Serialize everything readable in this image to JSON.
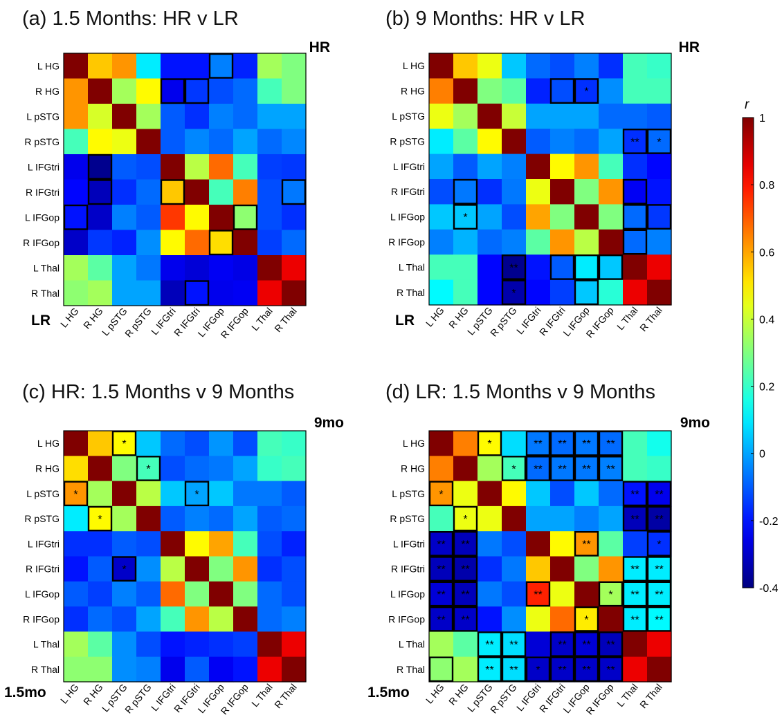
{
  "chart_data": [
    {
      "type": "heatmap",
      "title": "(a) 1.5 Months: HR v LR",
      "corner_top": "HR",
      "corner_bottom": "LR",
      "regions": [
        "L HG",
        "R HG",
        "L pSTG",
        "R pSTG",
        "L IFGtri",
        "R IFGtri",
        "L IFGop",
        "R IFGop",
        "L Thal",
        "R Thal"
      ],
      "matrix": [
        [
          1.0,
          0.55,
          0.62,
          0.1,
          -0.2,
          -0.2,
          -0.05,
          -0.18,
          0.35,
          0.3
        ],
        [
          0.62,
          1.0,
          0.35,
          0.48,
          -0.25,
          -0.15,
          -0.12,
          -0.08,
          0.22,
          0.3
        ],
        [
          0.62,
          0.42,
          1.0,
          0.35,
          -0.1,
          -0.16,
          -0.05,
          -0.08,
          0.0,
          0.0
        ],
        [
          0.22,
          0.48,
          0.45,
          1.0,
          -0.1,
          -0.04,
          -0.08,
          0.0,
          -0.08,
          -0.04
        ],
        [
          -0.25,
          -0.38,
          -0.1,
          -0.12,
          1.0,
          0.38,
          0.68,
          0.22,
          -0.14,
          -0.15
        ],
        [
          -0.22,
          -0.32,
          -0.16,
          -0.08,
          0.55,
          1.0,
          0.22,
          0.65,
          -0.12,
          -0.06
        ],
        [
          -0.2,
          -0.3,
          -0.05,
          -0.1,
          0.75,
          0.48,
          1.0,
          0.32,
          -0.12,
          -0.16
        ],
        [
          -0.3,
          -0.15,
          -0.18,
          -0.03,
          0.48,
          0.68,
          0.52,
          1.0,
          -0.14,
          -0.08
        ],
        [
          0.35,
          0.25,
          0.0,
          -0.06,
          -0.25,
          -0.28,
          -0.24,
          -0.26,
          1.0,
          0.85
        ],
        [
          0.32,
          0.35,
          0.0,
          0.0,
          -0.32,
          -0.2,
          -0.25,
          -0.24,
          0.85,
          1.0
        ]
      ],
      "boxes": [
        [
          0,
          6
        ],
        [
          1,
          4
        ],
        [
          1,
          5
        ],
        [
          4,
          1
        ],
        [
          5,
          1
        ],
        [
          5,
          4
        ],
        [
          5,
          9
        ],
        [
          6,
          0
        ],
        [
          6,
          7
        ],
        [
          7,
          6
        ],
        [
          9,
          5
        ]
      ],
      "stars": []
    },
    {
      "type": "heatmap",
      "title": "(b) 9 Months: HR v LR",
      "corner_top": "HR",
      "corner_bottom": "LR",
      "regions": [
        "L HG",
        "R HG",
        "L pSTG",
        "R pSTG",
        "L IFGtri",
        "R IFGtri",
        "L IFGop",
        "R IFGop",
        "L Thal",
        "R Thal"
      ],
      "matrix": [
        [
          1.0,
          0.55,
          0.45,
          0.05,
          -0.08,
          -0.12,
          -0.05,
          -0.16,
          0.22,
          0.2
        ],
        [
          0.65,
          1.0,
          0.3,
          0.25,
          -0.18,
          -0.12,
          -0.16,
          -0.03,
          0.22,
          0.22
        ],
        [
          0.45,
          0.35,
          1.0,
          0.4,
          0.0,
          0.0,
          0.0,
          -0.08,
          -0.08,
          -0.1
        ],
        [
          0.1,
          0.25,
          0.48,
          1.0,
          -0.1,
          -0.05,
          -0.08,
          0.0,
          -0.16,
          -0.08
        ],
        [
          0.0,
          -0.1,
          0.0,
          -0.05,
          1.0,
          0.48,
          0.62,
          0.22,
          -0.16,
          -0.22
        ],
        [
          -0.12,
          -0.06,
          -0.16,
          -0.06,
          0.45,
          1.0,
          0.3,
          0.62,
          -0.24,
          -0.2
        ],
        [
          0.05,
          0.05,
          0.0,
          -0.12,
          0.6,
          0.3,
          1.0,
          0.3,
          -0.08,
          -0.15
        ],
        [
          -0.05,
          0.02,
          -0.08,
          -0.05,
          0.25,
          0.62,
          0.38,
          1.0,
          -0.08,
          -0.05
        ],
        [
          0.22,
          0.22,
          -0.22,
          -0.38,
          -0.2,
          -0.1,
          0.1,
          0.05,
          1.0,
          0.85
        ],
        [
          0.12,
          0.22,
          -0.22,
          -0.34,
          -0.22,
          -0.14,
          0.05,
          0.18,
          0.85,
          1.0
        ]
      ],
      "boxes": [
        [
          1,
          5
        ],
        [
          1,
          6
        ],
        [
          3,
          8
        ],
        [
          3,
          9
        ],
        [
          5,
          1
        ],
        [
          5,
          8
        ],
        [
          6,
          1
        ],
        [
          6,
          8
        ],
        [
          6,
          9
        ],
        [
          7,
          8
        ],
        [
          8,
          3
        ],
        [
          8,
          5
        ],
        [
          8,
          6
        ],
        [
          8,
          7
        ],
        [
          9,
          3
        ],
        [
          9,
          6
        ]
      ],
      "stars": [
        [
          1,
          6,
          "*"
        ],
        [
          3,
          8,
          "**"
        ],
        [
          3,
          9,
          "*"
        ],
        [
          6,
          1,
          "*"
        ],
        [
          8,
          3,
          "**"
        ],
        [
          9,
          3,
          "*"
        ]
      ]
    },
    {
      "type": "heatmap",
      "title": "(c) HR: 1.5 Months v 9 Months",
      "corner_top": "9mo",
      "corner_bottom": "1.5mo",
      "regions": [
        "L HG",
        "R HG",
        "L pSTG",
        "R pSTG",
        "L IFGtri",
        "R IFGtri",
        "L IFGop",
        "R IFGop",
        "L Thal",
        "R Thal"
      ],
      "matrix": [
        [
          1.0,
          0.55,
          0.48,
          0.05,
          -0.08,
          -0.12,
          -0.02,
          -0.12,
          0.22,
          0.2
        ],
        [
          0.52,
          1.0,
          0.3,
          0.22,
          -0.12,
          -0.08,
          -0.06,
          0.0,
          0.2,
          0.22
        ],
        [
          0.62,
          0.35,
          1.0,
          0.38,
          0.05,
          0.0,
          0.05,
          -0.06,
          -0.06,
          -0.1
        ],
        [
          0.1,
          0.48,
          0.35,
          1.0,
          -0.1,
          -0.05,
          -0.08,
          0.0,
          -0.1,
          -0.08
        ],
        [
          -0.16,
          -0.16,
          -0.1,
          -0.12,
          1.0,
          0.48,
          0.6,
          0.22,
          -0.12,
          -0.18
        ],
        [
          -0.2,
          -0.1,
          -0.3,
          -0.03,
          0.38,
          1.0,
          0.3,
          0.62,
          -0.16,
          -0.12
        ],
        [
          -0.1,
          -0.14,
          -0.05,
          -0.1,
          0.68,
          0.3,
          1.0,
          0.3,
          -0.08,
          -0.12
        ],
        [
          -0.16,
          -0.08,
          -0.12,
          0.0,
          0.22,
          0.62,
          0.38,
          1.0,
          -0.08,
          -0.05
        ],
        [
          0.35,
          0.25,
          -0.03,
          -0.12,
          -0.2,
          -0.18,
          -0.16,
          -0.14,
          1.0,
          0.85
        ],
        [
          0.32,
          0.32,
          -0.03,
          -0.05,
          -0.25,
          -0.1,
          -0.24,
          -0.2,
          0.85,
          1.0
        ]
      ],
      "boxes": [
        [
          0,
          2
        ],
        [
          1,
          3
        ],
        [
          2,
          0
        ],
        [
          2,
          5
        ],
        [
          3,
          1
        ],
        [
          5,
          2
        ]
      ],
      "stars": [
        [
          0,
          2,
          "*"
        ],
        [
          1,
          3,
          "*"
        ],
        [
          2,
          0,
          "*"
        ],
        [
          2,
          5,
          "*"
        ],
        [
          3,
          1,
          "*"
        ],
        [
          5,
          2,
          "*"
        ]
      ]
    },
    {
      "type": "heatmap",
      "title": "(d) LR: 1.5 Months v 9 Months",
      "corner_top": "9mo",
      "corner_bottom": "1.5mo",
      "regions": [
        "L HG",
        "R HG",
        "L pSTG",
        "R pSTG",
        "L IFGtri",
        "R IFGtri",
        "L IFGop",
        "R IFGop",
        "L Thal",
        "R Thal"
      ],
      "matrix": [
        [
          1.0,
          0.65,
          0.48,
          0.08,
          -0.06,
          -0.08,
          -0.06,
          -0.08,
          0.22,
          0.15
        ],
        [
          0.65,
          1.0,
          0.35,
          0.22,
          -0.08,
          -0.06,
          -0.06,
          -0.05,
          0.22,
          0.2
        ],
        [
          0.62,
          0.45,
          1.0,
          0.48,
          0.05,
          -0.12,
          0.05,
          -0.08,
          -0.2,
          -0.25
        ],
        [
          0.22,
          0.45,
          0.45,
          1.0,
          0.0,
          0.0,
          -0.05,
          0.0,
          -0.32,
          -0.35
        ],
        [
          -0.3,
          -0.32,
          -0.06,
          -0.12,
          1.0,
          0.48,
          0.62,
          0.25,
          -0.14,
          -0.16
        ],
        [
          -0.32,
          -0.34,
          -0.16,
          -0.06,
          0.55,
          1.0,
          0.3,
          0.62,
          0.1,
          0.1
        ],
        [
          -0.28,
          -0.32,
          -0.06,
          -0.12,
          0.78,
          0.45,
          1.0,
          0.35,
          0.1,
          0.1
        ],
        [
          -0.3,
          -0.3,
          -0.2,
          -0.03,
          0.45,
          0.68,
          0.5,
          1.0,
          0.1,
          0.12
        ],
        [
          0.35,
          0.25,
          0.1,
          0.08,
          -0.28,
          -0.3,
          -0.28,
          -0.32,
          1.0,
          0.85
        ],
        [
          0.32,
          0.35,
          0.1,
          0.08,
          -0.3,
          -0.3,
          -0.3,
          -0.3,
          0.85,
          1.0
        ]
      ],
      "boxes": [
        [
          0,
          2
        ],
        [
          0,
          4
        ],
        [
          0,
          5
        ],
        [
          0,
          6
        ],
        [
          0,
          7
        ],
        [
          1,
          3
        ],
        [
          1,
          4
        ],
        [
          1,
          5
        ],
        [
          1,
          6
        ],
        [
          1,
          7
        ],
        [
          2,
          0
        ],
        [
          2,
          8
        ],
        [
          2,
          9
        ],
        [
          3,
          1
        ],
        [
          3,
          8
        ],
        [
          3,
          9
        ],
        [
          4,
          0
        ],
        [
          4,
          1
        ],
        [
          4,
          6
        ],
        [
          4,
          9
        ],
        [
          5,
          0
        ],
        [
          5,
          1
        ],
        [
          5,
          8
        ],
        [
          5,
          9
        ],
        [
          6,
          0
        ],
        [
          6,
          1
        ],
        [
          6,
          4
        ],
        [
          6,
          7
        ],
        [
          6,
          8
        ],
        [
          6,
          9
        ],
        [
          7,
          0
        ],
        [
          7,
          1
        ],
        [
          7,
          6
        ],
        [
          7,
          8
        ],
        [
          7,
          9
        ],
        [
          8,
          2
        ],
        [
          8,
          3
        ],
        [
          8,
          5
        ],
        [
          8,
          6
        ],
        [
          8,
          7
        ],
        [
          9,
          0
        ],
        [
          9,
          2
        ],
        [
          9,
          3
        ],
        [
          9,
          4
        ],
        [
          9,
          5
        ],
        [
          9,
          6
        ],
        [
          9,
          7
        ]
      ],
      "stars": [
        [
          0,
          2,
          "*"
        ],
        [
          0,
          4,
          "**"
        ],
        [
          0,
          5,
          "**"
        ],
        [
          0,
          6,
          "**"
        ],
        [
          0,
          7,
          "**"
        ],
        [
          1,
          3,
          "*"
        ],
        [
          1,
          4,
          "**"
        ],
        [
          1,
          5,
          "**"
        ],
        [
          1,
          6,
          "**"
        ],
        [
          1,
          7,
          "**"
        ],
        [
          2,
          0,
          "*"
        ],
        [
          2,
          8,
          "**"
        ],
        [
          2,
          9,
          "**"
        ],
        [
          3,
          1,
          "*"
        ],
        [
          3,
          8,
          "**"
        ],
        [
          3,
          9,
          "**"
        ],
        [
          4,
          0,
          "**"
        ],
        [
          4,
          1,
          "**"
        ],
        [
          4,
          6,
          "**"
        ],
        [
          4,
          9,
          "*"
        ],
        [
          5,
          0,
          "**"
        ],
        [
          5,
          1,
          "**"
        ],
        [
          5,
          8,
          "**"
        ],
        [
          5,
          9,
          "**"
        ],
        [
          6,
          0,
          "**"
        ],
        [
          6,
          1,
          "**"
        ],
        [
          6,
          4,
          "**"
        ],
        [
          6,
          7,
          "*"
        ],
        [
          6,
          8,
          "**"
        ],
        [
          6,
          9,
          "**"
        ],
        [
          7,
          0,
          "**"
        ],
        [
          7,
          1,
          "**"
        ],
        [
          7,
          6,
          "*"
        ],
        [
          7,
          8,
          "**"
        ],
        [
          7,
          9,
          "**"
        ],
        [
          8,
          2,
          "**"
        ],
        [
          8,
          3,
          "**"
        ],
        [
          8,
          5,
          "**"
        ],
        [
          8,
          6,
          "**"
        ],
        [
          8,
          7,
          "**"
        ],
        [
          9,
          2,
          "**"
        ],
        [
          9,
          3,
          "**"
        ],
        [
          9,
          4,
          "*"
        ],
        [
          9,
          5,
          "**"
        ],
        [
          9,
          6,
          "**"
        ],
        [
          9,
          7,
          "**"
        ]
      ]
    }
  ],
  "colorbar": {
    "label": "r",
    "min": -0.4,
    "max": 1.0,
    "ticks": [
      1,
      0.8,
      0.6,
      0.4,
      0.2,
      0,
      -0.2,
      -0.4
    ],
    "tick_labels": [
      "1",
      "0.8",
      "0.6",
      "0.4",
      "0.2",
      "0",
      "-0.2",
      "-0.4"
    ],
    "colormap": "jet"
  }
}
